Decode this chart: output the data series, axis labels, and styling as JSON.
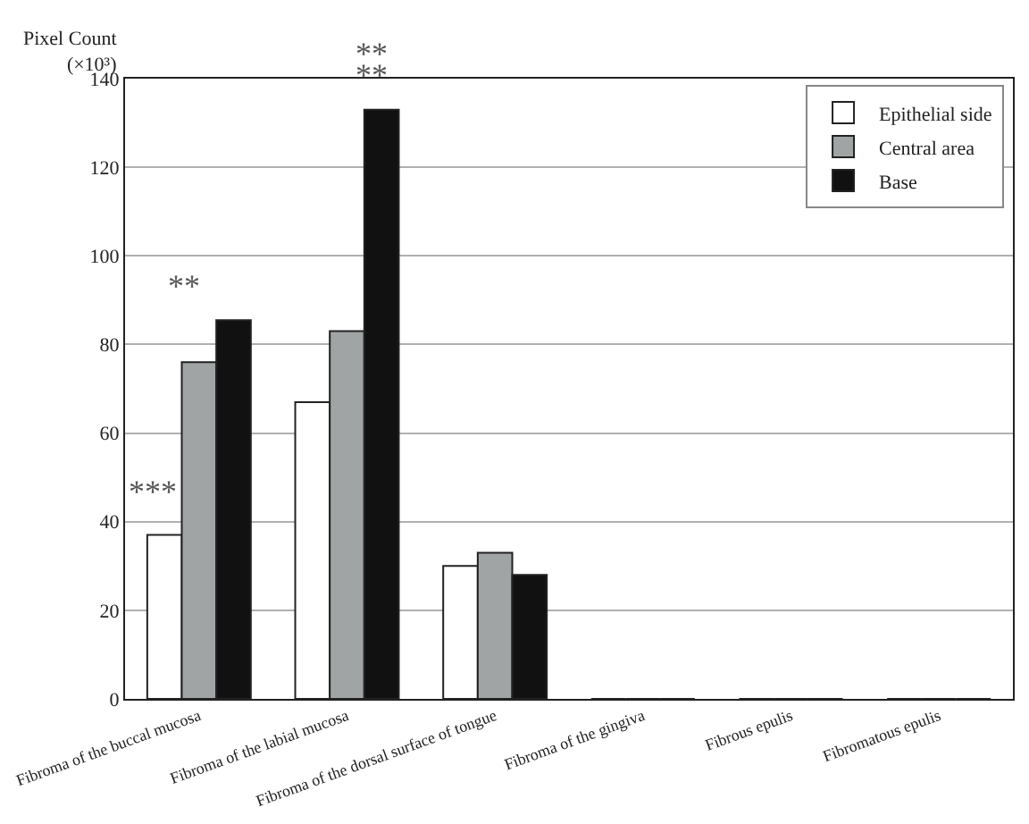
{
  "chart_data": {
    "type": "bar",
    "ylabel": "Pixel Count\n(×10³)",
    "categories": [
      "Fibroma of the buccal mucosa",
      "Fibroma of the labial mucosa",
      "Fibroma of the dorsal surface of tongue",
      "Fibroma of the gingiva",
      "Fibrous epulis",
      "Fibromatous epulis"
    ],
    "series": [
      {
        "name": "Epithelial side",
        "color": "#ffffff",
        "values": [
          37,
          67,
          30,
          0,
          0,
          0
        ]
      },
      {
        "name": "Central area",
        "color": "#a0a4a4",
        "values": [
          76,
          83,
          33,
          0,
          0,
          0
        ]
      },
      {
        "name": "Base",
        "color": "#111111",
        "values": [
          85.5,
          133,
          28,
          0,
          0,
          0
        ]
      }
    ],
    "ylim": [
      0,
      140
    ],
    "yticks": [
      0,
      20,
      40,
      60,
      80,
      100,
      120,
      140
    ],
    "grid": "y",
    "legend": "top right",
    "annotations": [
      "***",
      "**",
      "**",
      "**"
    ]
  }
}
